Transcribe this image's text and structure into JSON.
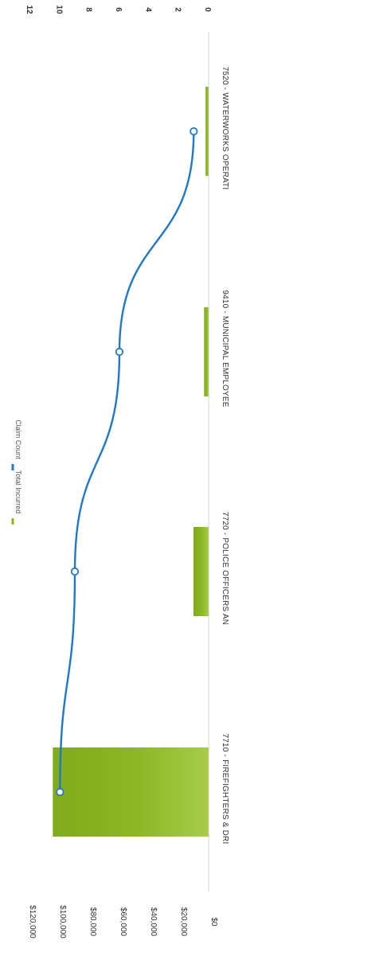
{
  "chart_data": {
    "type": "bar",
    "orientation": "rotated-90",
    "categories": [
      "7520 - WATERWORKS OPERATI",
      "9410 - MUNICIPAL EMPLOYEE",
      "7720 - POLICE OFFICERS AN",
      "7710 - FIREFIGHTERS & DRI"
    ],
    "series": [
      {
        "name": "Total Incurred",
        "type": "bar",
        "axis": "primary",
        "values": [
          2000,
          3000,
          10000,
          103000
        ],
        "color": "#8cb826"
      },
      {
        "name": "Claim Count",
        "type": "line",
        "axis": "secondary",
        "values": [
          1,
          6,
          9,
          10
        ],
        "color": "#1f78c8"
      }
    ],
    "primary_axis": {
      "ticks": [
        "$120,000",
        "$100,000",
        "$80,000",
        "$60,000",
        "$40,000",
        "$20,000",
        "$0"
      ],
      "tick_values": [
        120000,
        100000,
        80000,
        60000,
        40000,
        20000,
        0
      ],
      "range": [
        0,
        120000
      ]
    },
    "secondary_axis": {
      "ticks": [
        "12",
        "10",
        "8",
        "6",
        "4",
        "2",
        "0"
      ],
      "tick_values": [
        12,
        10,
        8,
        6,
        4,
        2,
        0
      ],
      "range": [
        0,
        12
      ]
    },
    "legend": {
      "position": "left",
      "items": [
        {
          "label": "Total Incurred",
          "color": "#8cb826"
        },
        {
          "label": "Claim Count",
          "color": "#1f78c8"
        }
      ]
    },
    "grid": false
  }
}
